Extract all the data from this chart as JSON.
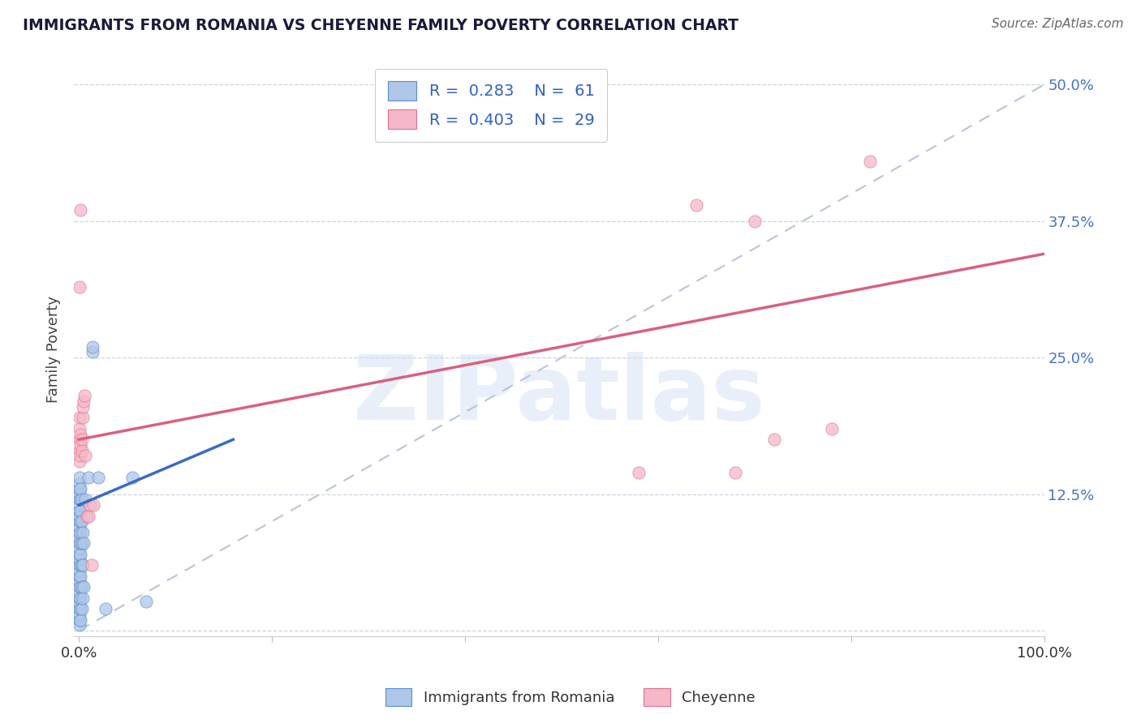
{
  "title": "IMMIGRANTS FROM ROMANIA VS CHEYENNE FAMILY POVERTY CORRELATION CHART",
  "source": "Source: ZipAtlas.com",
  "ylabel": "Family Poverty",
  "yticks": [
    0.0,
    0.125,
    0.25,
    0.375,
    0.5
  ],
  "ytick_labels": [
    "",
    "12.5%",
    "25.0%",
    "37.5%",
    "50.0%"
  ],
  "watermark": "ZIPatlas",
  "blue_fill": "#aec6e8",
  "blue_edge": "#5b8ecb",
  "pink_fill": "#f5b8c8",
  "pink_edge": "#e07090",
  "blue_line": "#3a6bbf",
  "pink_line": "#d96080",
  "dash_line": "#b8c4d8",
  "scatter_blue": [
    [
      0.001,
      0.005
    ],
    [
      0.001,
      0.01
    ],
    [
      0.001,
      0.015
    ],
    [
      0.001,
      0.02
    ],
    [
      0.001,
      0.025
    ],
    [
      0.001,
      0.03
    ],
    [
      0.001,
      0.035
    ],
    [
      0.001,
      0.04
    ],
    [
      0.001,
      0.045
    ],
    [
      0.001,
      0.05
    ],
    [
      0.001,
      0.055
    ],
    [
      0.001,
      0.06
    ],
    [
      0.001,
      0.065
    ],
    [
      0.001,
      0.07
    ],
    [
      0.001,
      0.075
    ],
    [
      0.001,
      0.08
    ],
    [
      0.001,
      0.085
    ],
    [
      0.001,
      0.09
    ],
    [
      0.001,
      0.095
    ],
    [
      0.001,
      0.1
    ],
    [
      0.001,
      0.105
    ],
    [
      0.001,
      0.11
    ],
    [
      0.001,
      0.115
    ],
    [
      0.001,
      0.12
    ],
    [
      0.001,
      0.125
    ],
    [
      0.001,
      0.13
    ],
    [
      0.001,
      0.135
    ],
    [
      0.001,
      0.14
    ],
    [
      0.002,
      0.01
    ],
    [
      0.002,
      0.02
    ],
    [
      0.002,
      0.03
    ],
    [
      0.002,
      0.04
    ],
    [
      0.002,
      0.05
    ],
    [
      0.002,
      0.06
    ],
    [
      0.002,
      0.07
    ],
    [
      0.002,
      0.08
    ],
    [
      0.002,
      0.09
    ],
    [
      0.002,
      0.1
    ],
    [
      0.002,
      0.11
    ],
    [
      0.002,
      0.12
    ],
    [
      0.002,
      0.13
    ],
    [
      0.003,
      0.02
    ],
    [
      0.003,
      0.04
    ],
    [
      0.003,
      0.06
    ],
    [
      0.003,
      0.08
    ],
    [
      0.003,
      0.1
    ],
    [
      0.003,
      0.12
    ],
    [
      0.004,
      0.03
    ],
    [
      0.004,
      0.06
    ],
    [
      0.004,
      0.09
    ],
    [
      0.005,
      0.04
    ],
    [
      0.005,
      0.08
    ],
    [
      0.007,
      0.12
    ],
    [
      0.01,
      0.14
    ],
    [
      0.014,
      0.255
    ],
    [
      0.014,
      0.26
    ],
    [
      0.02,
      0.14
    ],
    [
      0.028,
      0.02
    ],
    [
      0.055,
      0.14
    ],
    [
      0.07,
      0.027
    ]
  ],
  "scatter_pink": [
    [
      0.001,
      0.155
    ],
    [
      0.001,
      0.165
    ],
    [
      0.001,
      0.175
    ],
    [
      0.001,
      0.185
    ],
    [
      0.001,
      0.195
    ],
    [
      0.002,
      0.16
    ],
    [
      0.002,
      0.17
    ],
    [
      0.002,
      0.18
    ],
    [
      0.003,
      0.165
    ],
    [
      0.003,
      0.175
    ],
    [
      0.004,
      0.195
    ],
    [
      0.004,
      0.205
    ],
    [
      0.005,
      0.21
    ],
    [
      0.006,
      0.215
    ],
    [
      0.007,
      0.16
    ],
    [
      0.008,
      0.105
    ],
    [
      0.01,
      0.105
    ],
    [
      0.012,
      0.115
    ],
    [
      0.013,
      0.06
    ],
    [
      0.015,
      0.115
    ],
    [
      0.002,
      0.385
    ],
    [
      0.001,
      0.315
    ],
    [
      0.58,
      0.145
    ],
    [
      0.68,
      0.145
    ],
    [
      0.72,
      0.175
    ],
    [
      0.78,
      0.185
    ],
    [
      0.82,
      0.43
    ],
    [
      0.64,
      0.39
    ],
    [
      0.7,
      0.375
    ]
  ],
  "blue_trend_x": [
    0.0,
    0.16
  ],
  "blue_trend_y": [
    0.115,
    0.175
  ],
  "pink_trend_x": [
    0.0,
    1.0
  ],
  "pink_trend_y": [
    0.175,
    0.345
  ],
  "dash_trend_x": [
    0.0,
    1.0
  ],
  "dash_trend_y": [
    0.0,
    0.5
  ],
  "xlim": [
    -0.005,
    1.0
  ],
  "ylim": [
    -0.005,
    0.52
  ]
}
